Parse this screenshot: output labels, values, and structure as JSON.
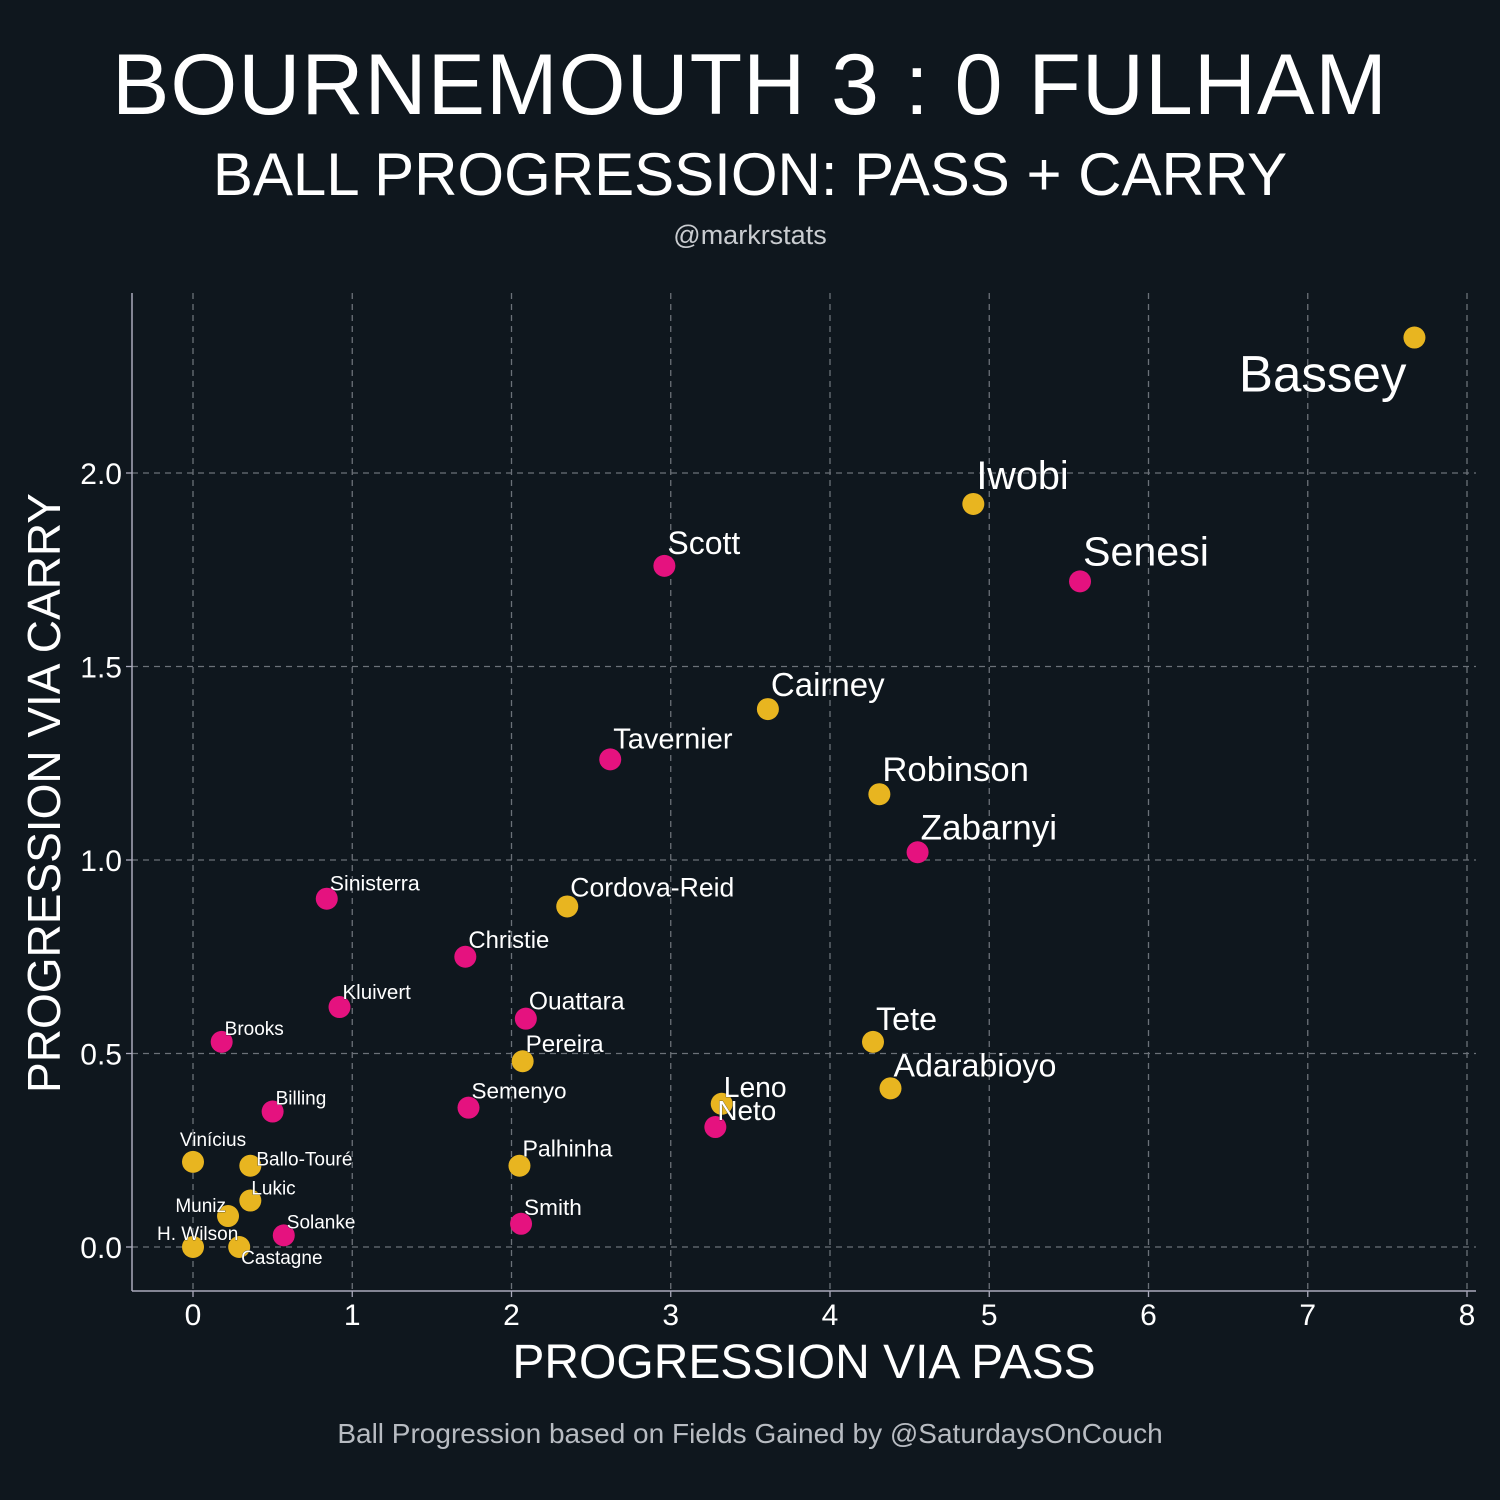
{
  "header": {
    "title": "BOURNEMOUTH 3 : 0 FULHAM",
    "subtitle": "BALL PROGRESSION: PASS + CARRY",
    "credit": "@markrstats"
  },
  "footer": "Ball Progression based on Fields Gained by @SaturdaysOnCouch",
  "colors": {
    "background": "#0f171e",
    "bournemouth": "#e5127f",
    "fulham": "#e8b520",
    "grid": "#6b7178"
  },
  "chart_data": {
    "type": "scatter",
    "title": "BALL PROGRESSION: PASS + CARRY",
    "xlabel": "PROGRESSION VIA PASS",
    "ylabel": "PROGRESSION VIA CARRY",
    "xlim": [
      -0.4,
      8.0
    ],
    "ylim": [
      -0.11,
      2.47
    ],
    "xticks": [
      0,
      1,
      2,
      3,
      4,
      5,
      6,
      7,
      8
    ],
    "xtick_labels": [
      "0",
      "1",
      "2",
      "3",
      "4",
      "5",
      "6",
      "7",
      "8"
    ],
    "yticks": [
      0,
      0.5,
      1,
      1.5,
      2
    ],
    "ytick_labels": [
      "0.0",
      "0.5",
      "1.0",
      "1.5",
      "2.0"
    ],
    "grid": true,
    "series": [
      {
        "name": "Bournemouth",
        "color": "#e5127f",
        "points": [
          {
            "label": "Senesi",
            "x": 5.57,
            "y": 1.72
          },
          {
            "label": "Scott",
            "x": 2.96,
            "y": 1.76
          },
          {
            "label": "Tavernier",
            "x": 2.62,
            "y": 1.26
          },
          {
            "label": "Zabarnyi",
            "x": 4.55,
            "y": 1.02
          },
          {
            "label": "Sinisterra",
            "x": 0.84,
            "y": 0.9
          },
          {
            "label": "Christie",
            "x": 1.71,
            "y": 0.75
          },
          {
            "label": "Kluivert",
            "x": 0.92,
            "y": 0.62
          },
          {
            "label": "Ouattara",
            "x": 2.09,
            "y": 0.59
          },
          {
            "label": "Brooks",
            "x": 0.18,
            "y": 0.53
          },
          {
            "label": "Semenyo",
            "x": 1.73,
            "y": 0.36
          },
          {
            "label": "Billing",
            "x": 0.5,
            "y": 0.35
          },
          {
            "label": "Neto",
            "x": 3.28,
            "y": 0.31
          },
          {
            "label": "Solanke",
            "x": 0.57,
            "y": 0.03
          },
          {
            "label": "Smith",
            "x": 2.06,
            "y": 0.06
          }
        ]
      },
      {
        "name": "Fulham",
        "color": "#e8b520",
        "points": [
          {
            "label": "Bassey",
            "x": 7.67,
            "y": 2.35
          },
          {
            "label": "Iwobi",
            "x": 4.9,
            "y": 1.92
          },
          {
            "label": "Cairney",
            "x": 3.61,
            "y": 1.39
          },
          {
            "label": "Robinson",
            "x": 4.31,
            "y": 1.17
          },
          {
            "label": "Cordova-Reid",
            "x": 2.35,
            "y": 0.88
          },
          {
            "label": "Tete",
            "x": 4.27,
            "y": 0.53
          },
          {
            "label": "Pereira",
            "x": 2.07,
            "y": 0.48
          },
          {
            "label": "Adarabioyo",
            "x": 4.38,
            "y": 0.41
          },
          {
            "label": "Leno",
            "x": 3.32,
            "y": 0.37
          },
          {
            "label": "Vinícius",
            "x": 0.0,
            "y": 0.22
          },
          {
            "label": "Ballo-Touré",
            "x": 0.36,
            "y": 0.21
          },
          {
            "label": "Palhinha",
            "x": 2.05,
            "y": 0.21
          },
          {
            "label": "Lukic",
            "x": 0.36,
            "y": 0.12
          },
          {
            "label": "Muniz",
            "x": 0.22,
            "y": 0.08
          },
          {
            "label": "H. Wilson",
            "x": 0.0,
            "y": 0.0
          },
          {
            "label": "Castagne",
            "x": 0.29,
            "y": 0.0
          }
        ]
      }
    ]
  }
}
